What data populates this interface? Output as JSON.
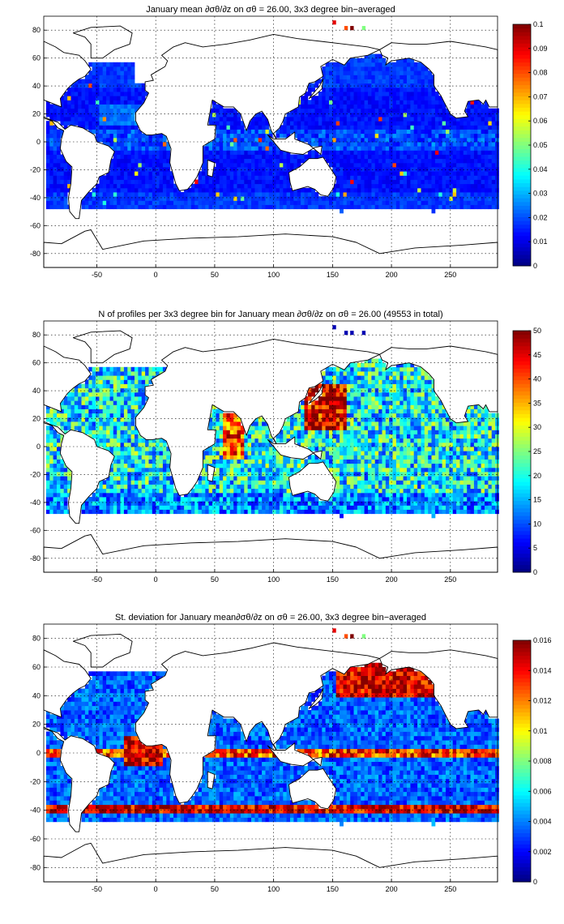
{
  "chart_data": [
    {
      "type": "heatmap",
      "title": "January mean ∂σθ/∂z on σθ = 26.00, 3x3 degree bin−averaged",
      "x_ticks": [
        -50,
        0,
        50,
        100,
        150,
        200,
        250
      ],
      "y_ticks": [
        -80,
        -60,
        -40,
        -20,
        0,
        20,
        40,
        60,
        80
      ],
      "xlim": [
        -95,
        290
      ],
      "ylim": [
        -90,
        90
      ],
      "grid": true,
      "colormap": "jet",
      "colorbar": {
        "min": 0,
        "max": 0.1,
        "ticks": [
          "0",
          "0.01",
          "0.02",
          "0.03",
          "0.04",
          "0.05",
          "0.06",
          "0.07",
          "0.08",
          "0.09",
          "0.1"
        ]
      },
      "bin_size_degrees": 3,
      "pattern": "low values (0.005–0.02) over most open ocean; higher values (0.02–0.04) in equatorial band and subpolar edges; scattered high bins near 80N",
      "colors": {
        "low": "#00008f",
        "mid": "#80ff80",
        "high": "#800000"
      }
    },
    {
      "type": "heatmap",
      "title": "N of profiles per 3x3 degree bin for January mean ∂σθ/∂z on σθ = 26.00 (49553 in total)",
      "x_ticks": [
        -50,
        0,
        50,
        100,
        150,
        200,
        250
      ],
      "y_ticks": [
        -80,
        -60,
        -40,
        -20,
        0,
        20,
        40,
        60,
        80
      ],
      "xlim": [
        -95,
        290
      ],
      "ylim": [
        -90,
        90
      ],
      "grid": true,
      "colormap": "jet",
      "colorbar": {
        "min": 0,
        "max": 50,
        "ticks": [
          "0",
          "5",
          "10",
          "15",
          "20",
          "25",
          "30",
          "35",
          "40",
          "45",
          "50"
        ]
      },
      "total_profiles": 49553,
      "pattern": "mostly 10–30 profiles per bin; saturated (50+) near Japan/Kuroshio and Arabian Sea; sparse near Antarctic edge"
    },
    {
      "type": "heatmap",
      "title": "St. deviation for January mean∂σθ/∂z on σθ = 26.00, 3x3 degree bin−averaged",
      "x_ticks": [
        -50,
        0,
        50,
        100,
        150,
        200,
        250
      ],
      "y_ticks": [
        -80,
        -60,
        -40,
        -20,
        0,
        20,
        40,
        60,
        80
      ],
      "xlim": [
        -95,
        290
      ],
      "ylim": [
        -90,
        90
      ],
      "grid": true,
      "colormap": "jet",
      "colorbar": {
        "min": 0,
        "max": 0.016,
        "ticks": [
          "0",
          "0.002",
          "0.004",
          "0.006",
          "0.008",
          "0.01",
          "0.012",
          "0.014",
          "0.016"
        ]
      },
      "pattern": "high std (>0.012) along equator, 40S band and North Pacific 40–60N; low (<0.004) in subtropical gyres"
    }
  ]
}
